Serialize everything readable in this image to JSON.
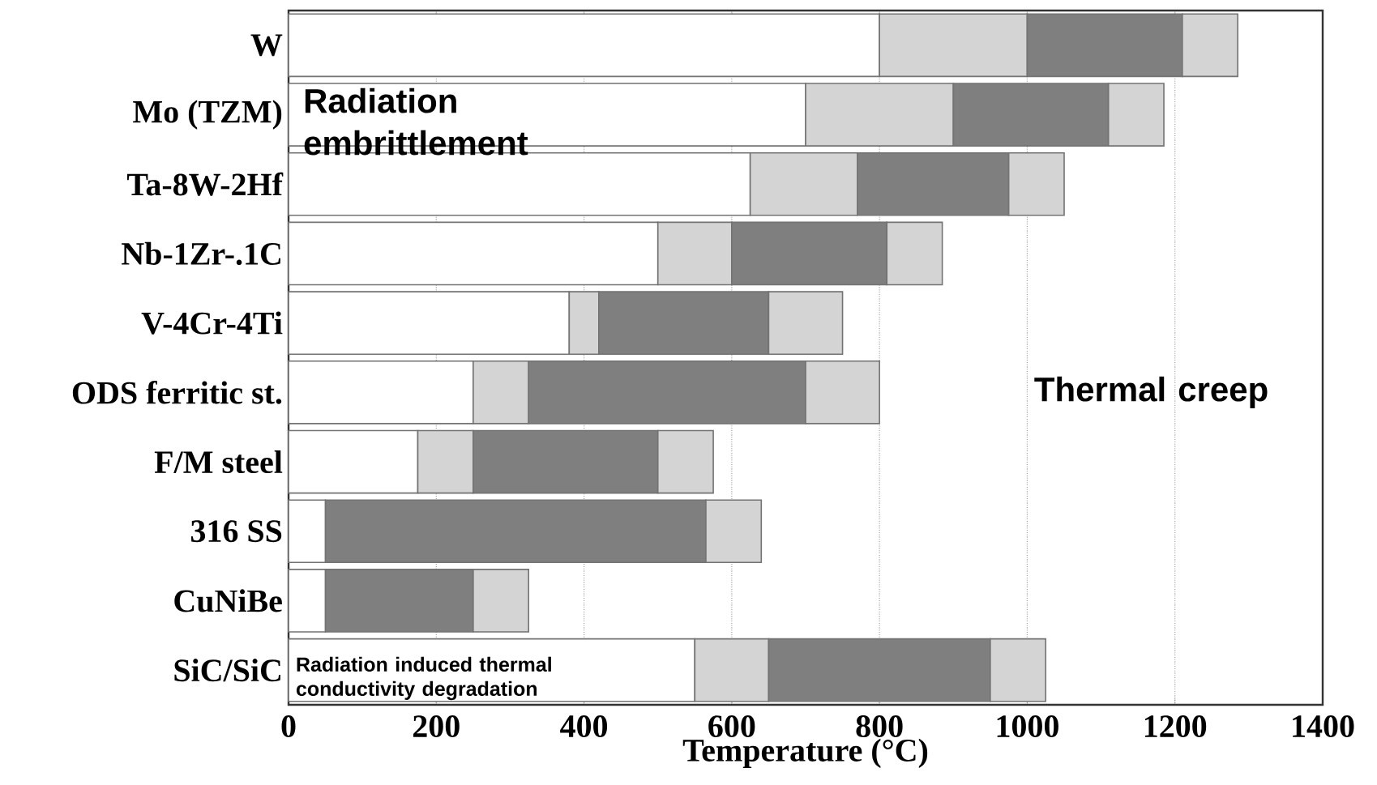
{
  "chart_data": {
    "type": "bar",
    "orientation": "horizontal",
    "stacked": true,
    "xlabel": "Temperature (°C)",
    "categories": [
      "W",
      "Mo (TZM)",
      "Ta-8W-2Hf",
      "Nb-1Zr-.1C",
      "V-4Cr-4Ti",
      "ODS ferritic st.",
      "F/M steel",
      "316 SS",
      "CuNiBe",
      "SiC/SiC"
    ],
    "series": [
      {
        "color": "#ffffff",
        "values": [
          800,
          700,
          625,
          500,
          380,
          250,
          175,
          50,
          50,
          550
        ]
      },
      {
        "color": "#d4d4d4",
        "values": [
          200,
          200,
          145,
          100,
          40,
          75,
          75,
          null,
          null,
          100
        ]
      },
      {
        "color": "#7f7f7f",
        "values": [
          210,
          210,
          205,
          210,
          230,
          375,
          250,
          515,
          200,
          300
        ]
      },
      {
        "color": "#d4d4d4",
        "values": [
          75,
          75,
          75,
          75,
          100,
          100,
          75,
          75,
          75,
          75
        ]
      }
    ],
    "xlim": [
      0,
      1400
    ],
    "xticks": [
      0,
      200,
      400,
      600,
      800,
      1000,
      1200,
      1400
    ],
    "grid": "x",
    "annotations": [
      "Radiation embrittlement",
      "Thermal creep",
      "Radiation induced thermal conductivity degradation"
    ]
  }
}
